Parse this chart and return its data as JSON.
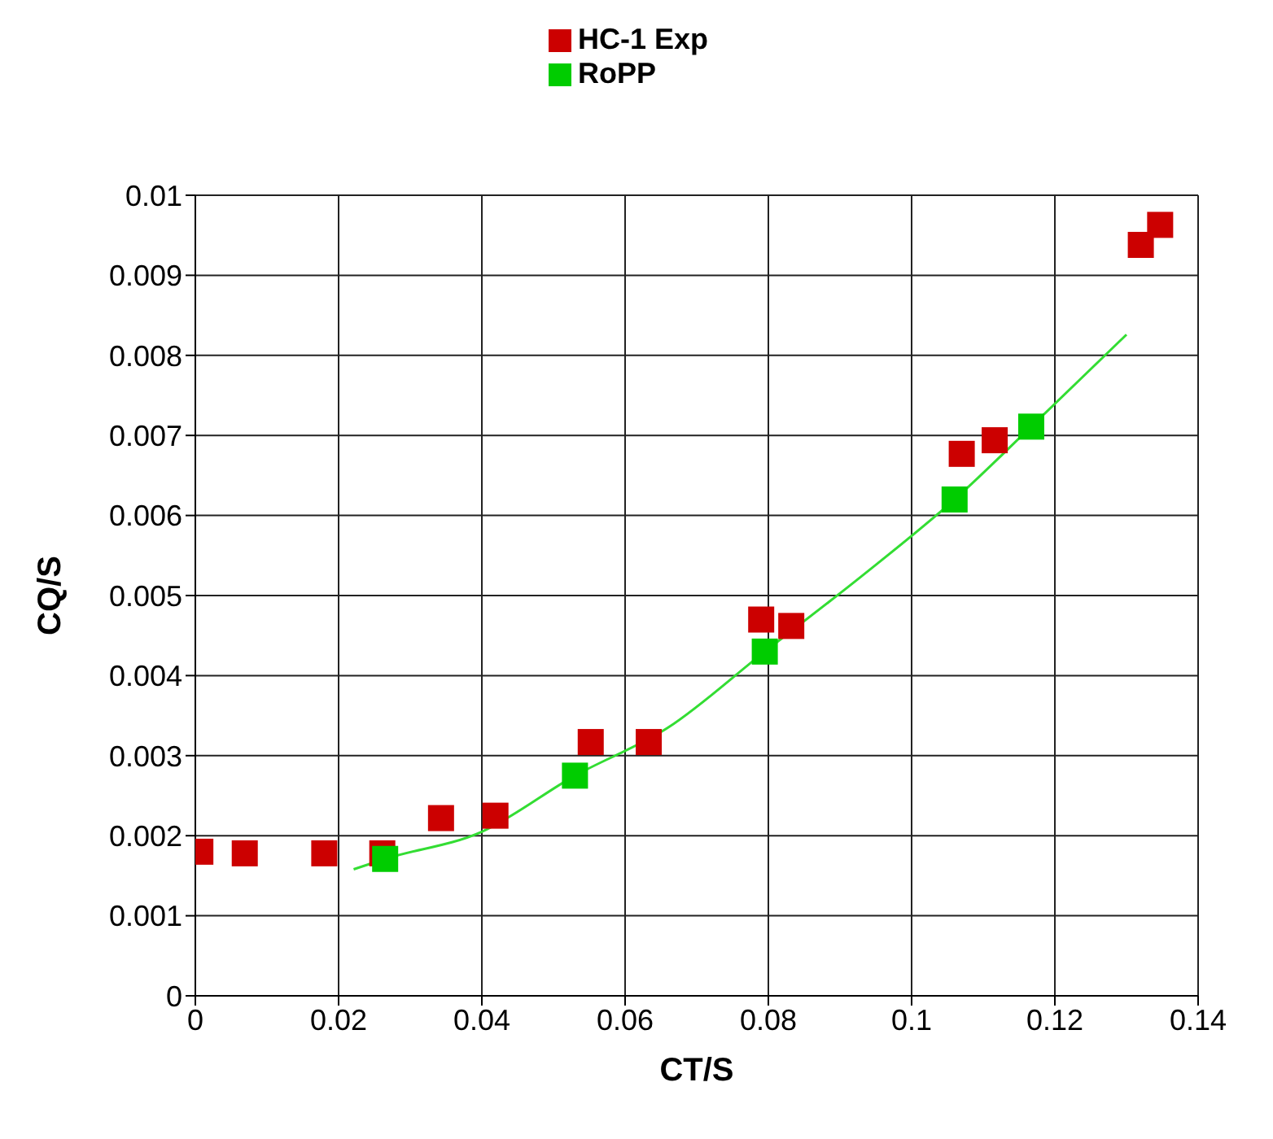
{
  "chart_data": {
    "type": "scatter",
    "xlabel": "CT/S",
    "ylabel": "CQ/S",
    "xlim": [
      0,
      0.14
    ],
    "xticks": [
      0,
      0.02,
      0.04,
      0.06,
      0.08,
      0.1,
      0.12,
      0.14
    ],
    "ylim": [
      0,
      0.01
    ],
    "yticks": [
      0,
      0.001,
      0.002,
      0.003,
      0.004,
      0.005,
      0.006,
      0.007,
      0.008,
      0.009,
      0.01
    ],
    "grid": true,
    "legend": "top",
    "marker": "square",
    "series": [
      {
        "name": "HC-1 Exp",
        "color": "#cc0000",
        "x": [
          0.0007,
          0.0069,
          0.018,
          0.0261,
          0.0343,
          0.0419,
          0.0552,
          0.0633,
          0.079,
          0.0832,
          0.107,
          0.1116,
          0.132,
          0.1347
        ],
        "values": [
          0.0018,
          0.00178,
          0.00178,
          0.00178,
          0.00222,
          0.00225,
          0.00317,
          0.00317,
          0.0047,
          0.00462,
          0.00677,
          0.00694,
          0.00938,
          0.00963
        ]
      },
      {
        "type": "line",
        "marker": "none",
        "color": "#33dd33",
        "x": [
          0.0221,
          0.0265,
          0.04,
          0.053,
          0.066,
          0.0795,
          0.093,
          0.106,
          0.1167,
          0.13
        ],
        "values": [
          0.00158,
          0.00171,
          0.00205,
          0.00275,
          0.00335,
          0.0043,
          0.00524,
          0.0062,
          0.00711,
          0.00826
        ]
      },
      {
        "name": "RoPP",
        "color": "#00cc00",
        "x": [
          0.0265,
          0.053,
          0.0795,
          0.106,
          0.1167
        ],
        "values": [
          0.00171,
          0.00275,
          0.0043,
          0.0062,
          0.00711
        ]
      }
    ]
  }
}
